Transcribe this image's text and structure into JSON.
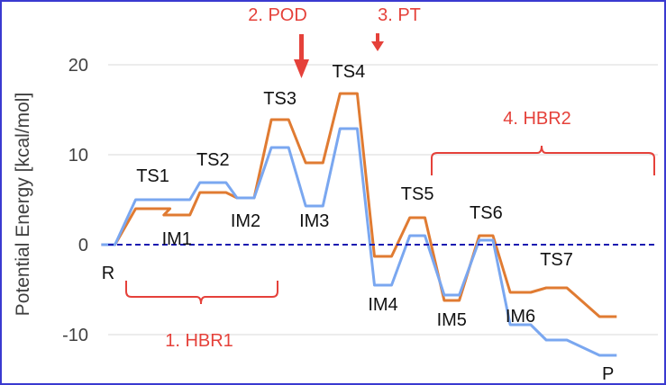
{
  "chart_data": {
    "type": "line",
    "ylabel": "Potential Energy [kcal/mol]",
    "ylim": [
      -15,
      21
    ],
    "yticks": [
      -10,
      0,
      10,
      20
    ],
    "ytick_labels": [
      "-10",
      "0",
      "10",
      "20"
    ],
    "x": [
      0,
      1,
      2,
      3,
      4,
      5,
      6,
      7,
      8,
      9,
      10,
      11,
      12,
      13,
      14,
      15,
      16
    ],
    "state_labels": [
      {
        "id": "R",
        "text": "R",
        "x": 0,
        "y": -3.8
      },
      {
        "id": "TS1",
        "text": "TS1",
        "x": 1.3,
        "y": 7.0
      },
      {
        "id": "IM1",
        "text": "IM1",
        "x": 2.0,
        "y": 0.0
      },
      {
        "id": "TS2",
        "text": "TS2",
        "x": 3.05,
        "y": 8.8
      },
      {
        "id": "IM2",
        "text": "IM2",
        "x": 4.0,
        "y": 2.0
      },
      {
        "id": "TS3",
        "text": "TS3",
        "x": 5.0,
        "y": 15.6
      },
      {
        "id": "IM3",
        "text": "IM3",
        "x": 6.0,
        "y": 2.0
      },
      {
        "id": "TS4",
        "text": "TS4",
        "x": 7.0,
        "y": 18.6
      },
      {
        "id": "IM4",
        "text": "IM4",
        "x": 8.0,
        "y": -7.3
      },
      {
        "id": "TS5",
        "text": "TS5",
        "x": 9.0,
        "y": 5.0
      },
      {
        "id": "IM5",
        "text": "IM5",
        "x": 10.0,
        "y": -9.0
      },
      {
        "id": "TS6",
        "text": "TS6",
        "x": 11.0,
        "y": 2.9
      },
      {
        "id": "IM6",
        "text": "IM6",
        "x": 12.0,
        "y": -8.6
      },
      {
        "id": "TS7",
        "text": "TS7",
        "x": 13.05,
        "y": -2.3
      },
      {
        "id": "P",
        "text": "P",
        "x": 14.55,
        "y": -15.0
      }
    ],
    "series": [
      {
        "color": "#e07b32",
        "levels": [
          0,
          4.0,
          3.3,
          5.8,
          5.2,
          13.9,
          9.1,
          16.8,
          -1.3,
          3.0,
          -6.2,
          1.0,
          -5.3,
          -4.8,
          -8.0
        ]
      },
      {
        "color": "#7aa7f0",
        "levels": [
          0,
          5.0,
          5.0,
          6.9,
          5.2,
          10.8,
          4.3,
          12.9,
          -4.5,
          1.0,
          -5.6,
          0.5,
          -8.9,
          -10.6,
          -12.3
        ]
      }
    ],
    "zero_line": {
      "value": 0,
      "color": "#1a1ab0",
      "style": "dashed"
    },
    "annotations": [
      {
        "id": "pod",
        "text": "2. POD",
        "color": "#e5413a",
        "arrow": "large"
      },
      {
        "id": "pt",
        "text": "3. PT",
        "color": "#e5413a",
        "arrow": "small"
      },
      {
        "id": "hbr1",
        "text": "1. HBR1",
        "color": "#e5413a",
        "brace": "bottom"
      },
      {
        "id": "hbr2",
        "text": "4. HBR2",
        "color": "#e5413a",
        "brace": "top"
      }
    ],
    "grid": {
      "horizontal": true,
      "vertical": false,
      "color": "#d9d9d9"
    },
    "legend": null
  }
}
